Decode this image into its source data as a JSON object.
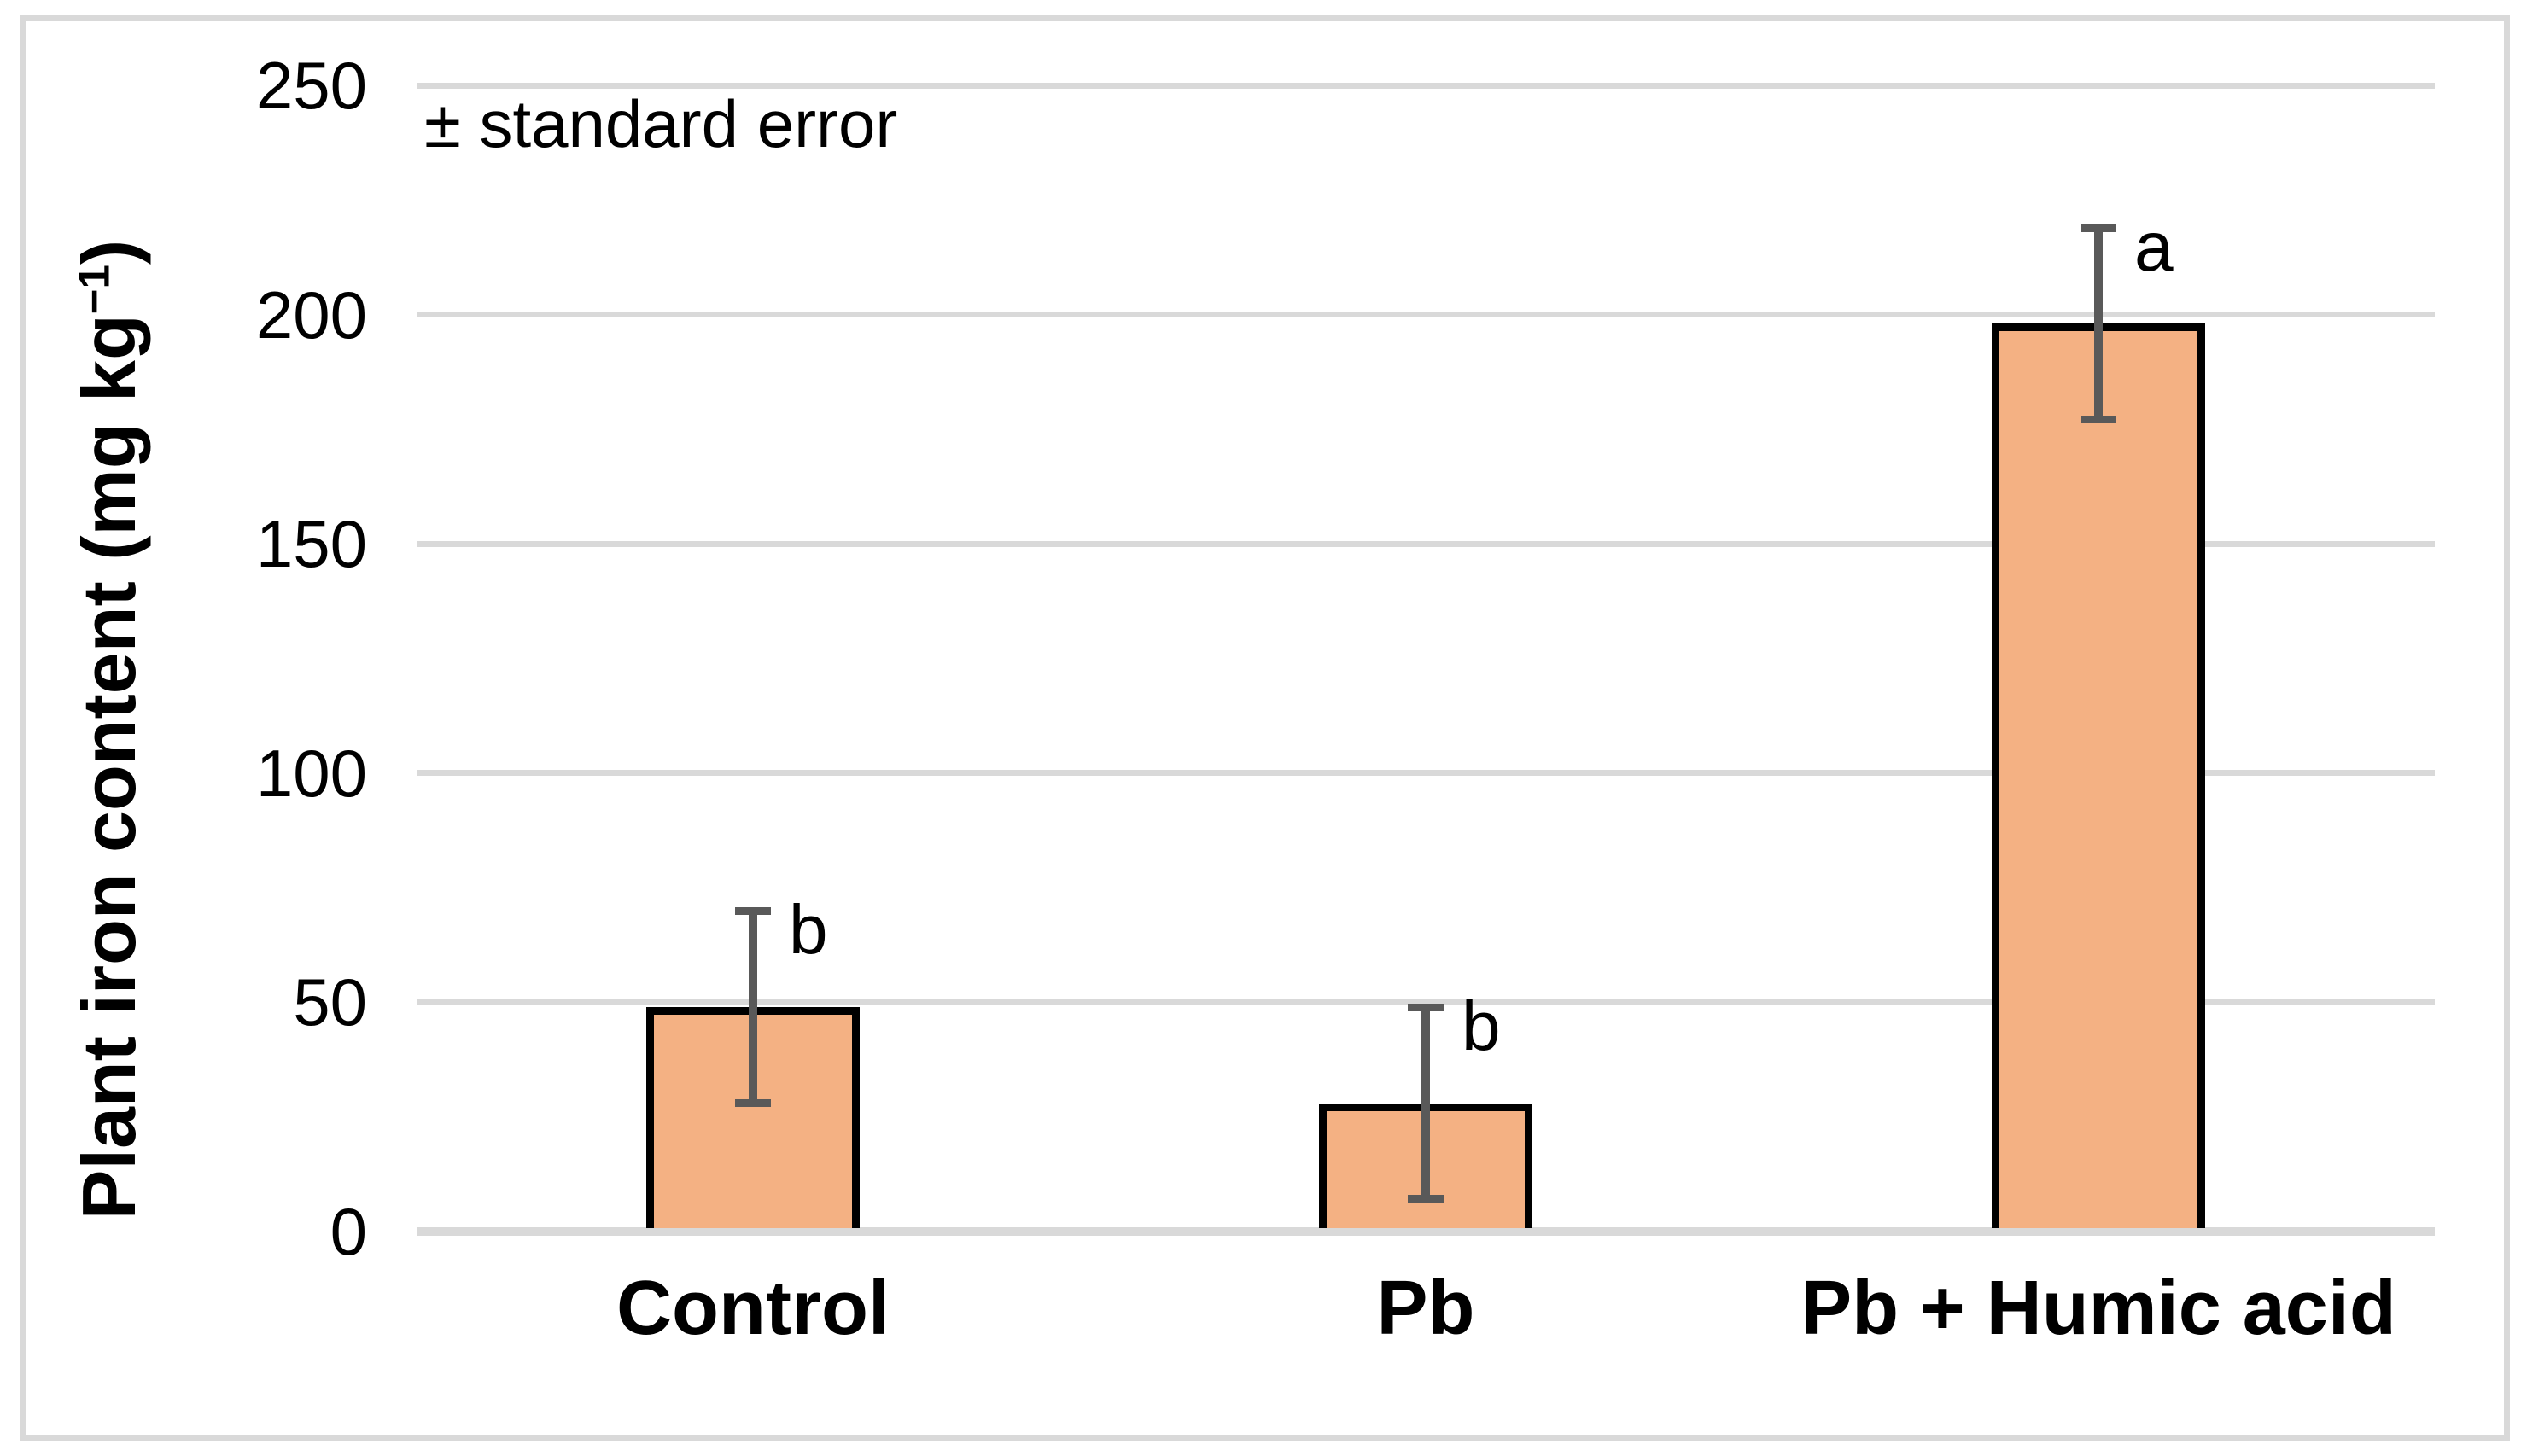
{
  "figure": {
    "background": "#FFFFFF",
    "border_color": "#D9D9D9"
  },
  "axis": {
    "ylabel_main": "Plant iron content (mg kg",
    "ylabel_sup": "−1",
    "ylabel_end": ")"
  },
  "chart_data": {
    "type": "bar",
    "title": "",
    "xlabel": "",
    "ylabel": "Plant iron content (mg kg⁻¹)",
    "annotation": "± standard error",
    "categories": [
      "Control",
      "Pb",
      "Pb + Humic acid"
    ],
    "values": [
      49,
      28,
      198
    ],
    "errors": [
      21,
      21,
      21
    ],
    "sig_letters": [
      "b",
      "b",
      "a"
    ],
    "yticks": [
      0,
      50,
      100,
      150,
      200,
      250
    ],
    "ylim": [
      0,
      250
    ],
    "grid": true,
    "legend": "none",
    "bar_color": "#F4B183",
    "bar_border_color": "#000000",
    "error_bar_color": "#595959",
    "gridline_color": "#D9D9D9",
    "text_color": "#000000"
  }
}
